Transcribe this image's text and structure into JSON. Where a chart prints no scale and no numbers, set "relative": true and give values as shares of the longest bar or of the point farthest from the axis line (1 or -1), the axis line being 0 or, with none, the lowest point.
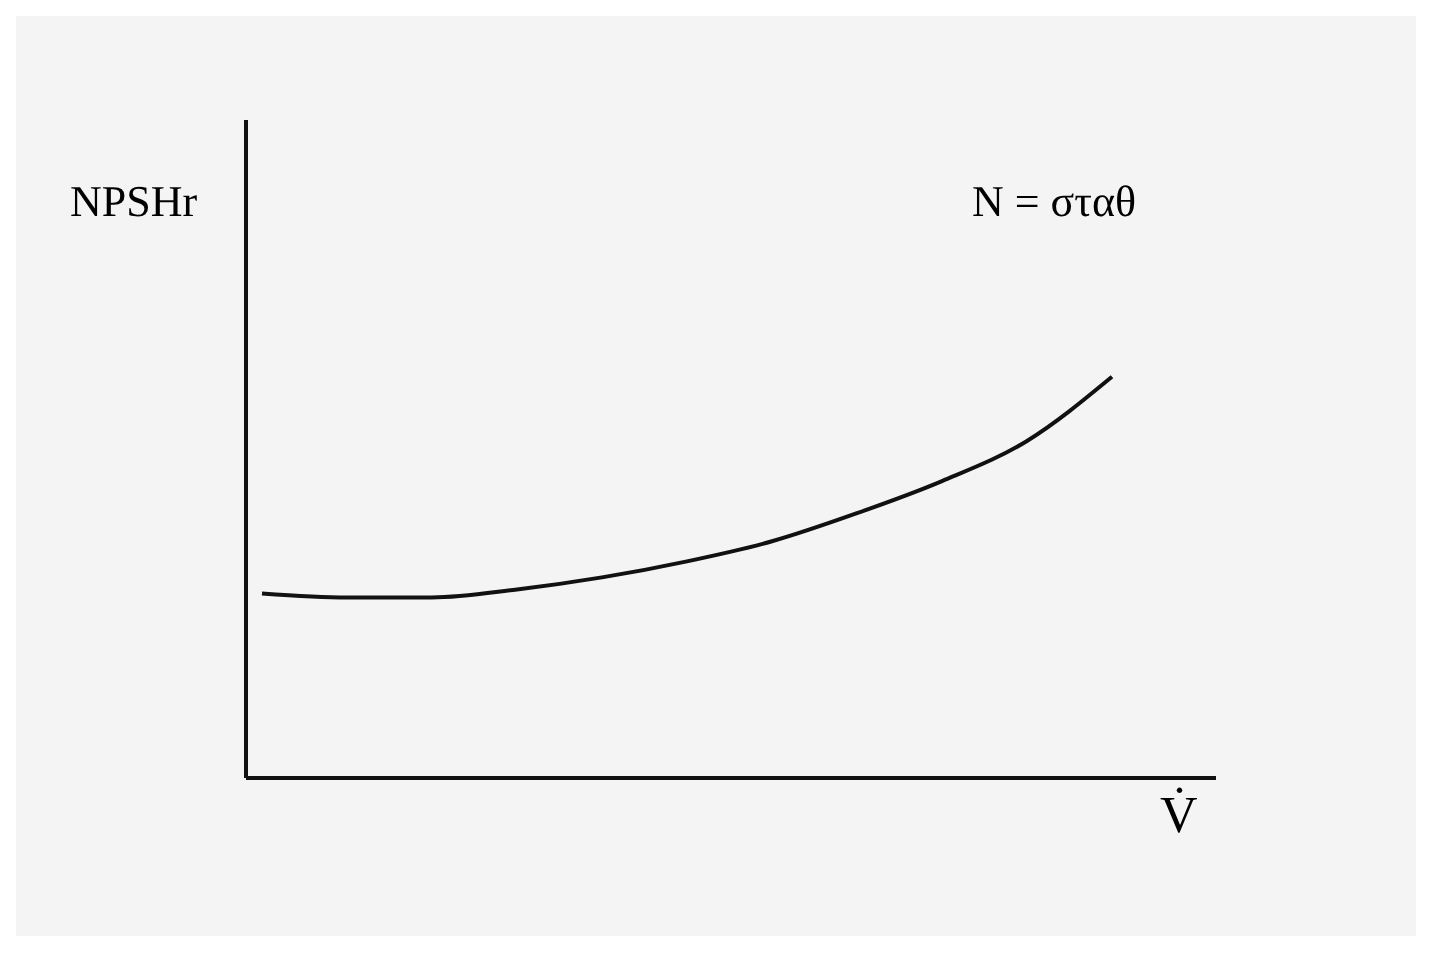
{
  "chart_data": {
    "type": "line",
    "xlabel": "V̇",
    "ylabel": "NPSHr",
    "annotations": [
      "N = σταθ"
    ],
    "relative": true,
    "marker": "none",
    "line_style": "solid",
    "categories": [
      null,
      null,
      null,
      null,
      null,
      null,
      null,
      null,
      null,
      null,
      null
    ],
    "series": [
      {
        "color": "#111111",
        "values": [
          0.46,
          0.45,
          0.45,
          0.47,
          0.5,
          0.54,
          0.59,
          0.66,
          0.74,
          0.84,
          1
        ]
      }
    ]
  }
}
